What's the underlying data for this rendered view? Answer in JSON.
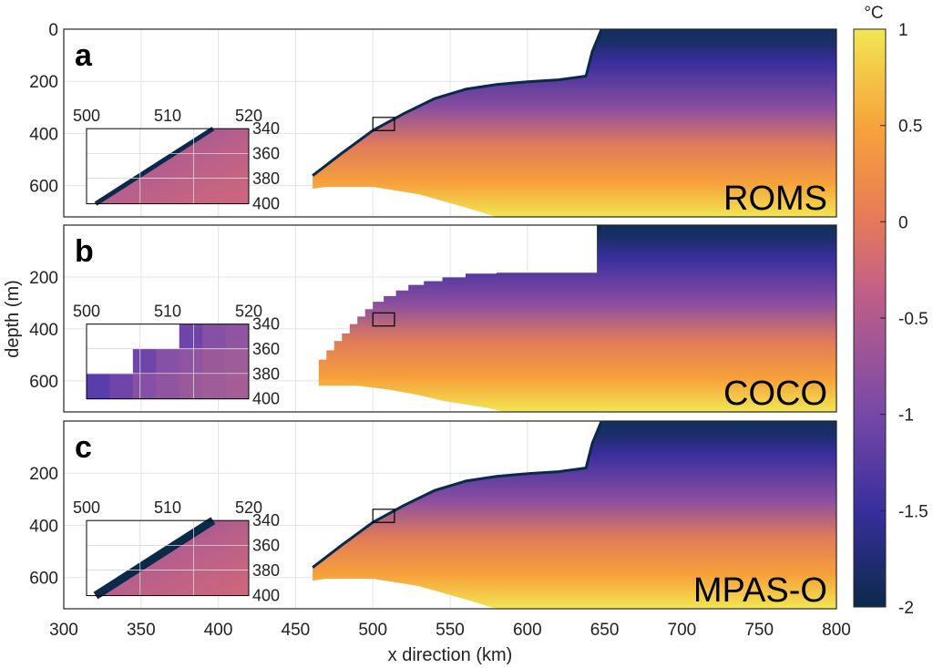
{
  "chart_data": {
    "type": "heatmap",
    "xlabel": "x direction (km)",
    "ylabel": "depth (m)",
    "xlim": [
      300,
      800
    ],
    "ylim": [
      720,
      0
    ],
    "x_ticks": [
      "300",
      "350",
      "400",
      "450",
      "500",
      "550",
      "600",
      "650",
      "700",
      "750",
      "800"
    ],
    "colorbar": {
      "unit": "°C",
      "range": [
        -2,
        1
      ],
      "ticks": [
        "1",
        "0.5",
        "0",
        "-0.5",
        "-1",
        "-1.5",
        "-2"
      ],
      "colors": [
        "#0b2a4a",
        "#3a2f9e",
        "#7d4ba6",
        "#c35f86",
        "#e97c56",
        "#f7a23a",
        "#f2e652"
      ]
    },
    "panels": [
      {
        "label": "a",
        "model": "ROMS",
        "y_ticks": [
          "0",
          "200",
          "400",
          "600"
        ],
        "inset": {
          "x_ticks": [
            "500",
            "510",
            "520"
          ],
          "y_ticks": [
            "340",
            "360",
            "380",
            "400"
          ],
          "style": "smooth"
        }
      },
      {
        "label": "b",
        "model": "COCO",
        "y_ticks": [
          "200",
          "400",
          "600"
        ],
        "inset": {
          "x_ticks": [
            "500",
            "510",
            "520"
          ],
          "y_ticks": [
            "340",
            "360",
            "380",
            "400"
          ],
          "style": "stepped"
        }
      },
      {
        "label": "c",
        "model": "MPAS-O",
        "y_ticks": [
          "200",
          "400",
          "600"
        ],
        "inset": {
          "x_ticks": [
            "500",
            "510",
            "520"
          ],
          "y_ticks": [
            "340",
            "360",
            "380",
            "400"
          ],
          "style": "smooth"
        }
      }
    ]
  }
}
